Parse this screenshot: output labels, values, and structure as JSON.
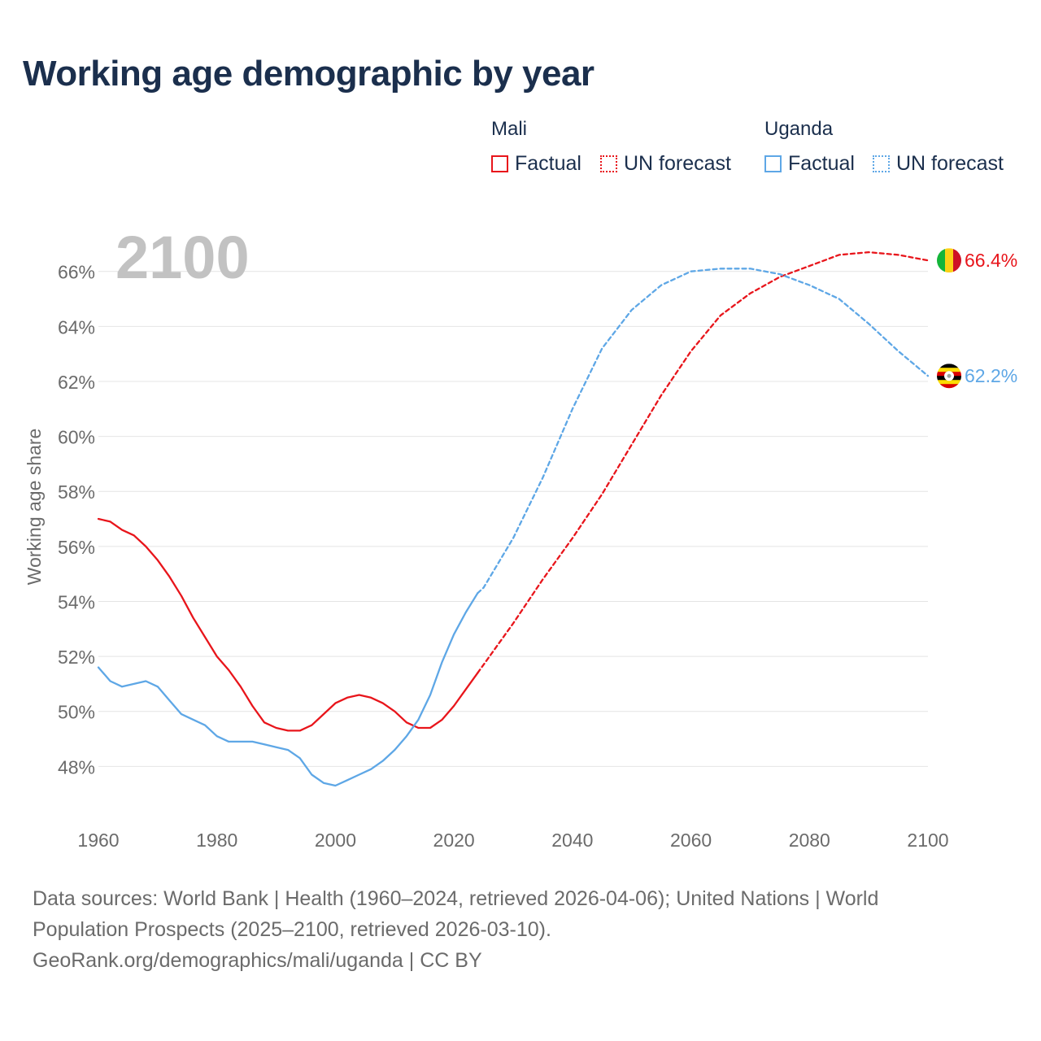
{
  "title": "Working age demographic by year",
  "legend": {
    "groups": [
      {
        "name": "Mali",
        "color": "#e8151b",
        "items": [
          "Factual",
          "UN forecast"
        ]
      },
      {
        "name": "Uganda",
        "color": "#5ea7e6",
        "items": [
          "Factual",
          "UN forecast"
        ]
      }
    ]
  },
  "year_overlay": "2100",
  "source": {
    "line1": "Data sources: World Bank | Health (1960–2024, retrieved 2026-04-06); United Nations | World",
    "line2": "Population Prospects (2025–2100, retrieved 2026-03-10).",
    "line3": "GeoRank.org/demographics/mali/uganda | CC BY"
  },
  "chart_data": {
    "type": "line",
    "title": "Working age demographic by year",
    "xlabel": "",
    "ylabel": "Working age share",
    "xlim": [
      1960,
      2100
    ],
    "ylim": [
      46,
      67.5
    ],
    "x_ticks": [
      1960,
      1980,
      2000,
      2020,
      2040,
      2060,
      2080,
      2100
    ],
    "x_tick_labels": [
      "1960",
      "1980",
      "2000",
      "2020",
      "2040",
      "2060",
      "2080",
      "2100"
    ],
    "y_ticks": [
      48,
      50,
      52,
      54,
      56,
      58,
      60,
      62,
      64,
      66
    ],
    "y_tick_labels": [
      "48%",
      "50%",
      "52%",
      "54%",
      "56%",
      "58%",
      "60%",
      "62%",
      "64%",
      "66%"
    ],
    "grid": true,
    "series": [
      {
        "name": "Mali",
        "kind": "Factual",
        "color": "#e8151b",
        "style": "solid",
        "points": [
          [
            1960,
            57.0
          ],
          [
            1962,
            56.9
          ],
          [
            1964,
            56.6
          ],
          [
            1966,
            56.4
          ],
          [
            1968,
            56.0
          ],
          [
            1970,
            55.5
          ],
          [
            1972,
            54.9
          ],
          [
            1974,
            54.2
          ],
          [
            1976,
            53.4
          ],
          [
            1978,
            52.7
          ],
          [
            1980,
            52.0
          ],
          [
            1982,
            51.5
          ],
          [
            1984,
            50.9
          ],
          [
            1986,
            50.2
          ],
          [
            1988,
            49.6
          ],
          [
            1990,
            49.4
          ],
          [
            1992,
            49.3
          ],
          [
            1994,
            49.3
          ],
          [
            1996,
            49.5
          ],
          [
            1998,
            49.9
          ],
          [
            2000,
            50.3
          ],
          [
            2002,
            50.5
          ],
          [
            2004,
            50.6
          ],
          [
            2006,
            50.5
          ],
          [
            2008,
            50.3
          ],
          [
            2010,
            50.0
          ],
          [
            2012,
            49.6
          ],
          [
            2014,
            49.4
          ],
          [
            2016,
            49.4
          ],
          [
            2018,
            49.7
          ],
          [
            2020,
            50.2
          ],
          [
            2022,
            50.8
          ],
          [
            2024,
            51.4
          ]
        ]
      },
      {
        "name": "Mali",
        "kind": "UN forecast",
        "color": "#e8151b",
        "style": "dashed",
        "points": [
          [
            2024,
            51.4
          ],
          [
            2025,
            51.7
          ],
          [
            2030,
            53.2
          ],
          [
            2035,
            54.8
          ],
          [
            2040,
            56.3
          ],
          [
            2045,
            57.9
          ],
          [
            2050,
            59.7
          ],
          [
            2055,
            61.5
          ],
          [
            2060,
            63.1
          ],
          [
            2065,
            64.4
          ],
          [
            2070,
            65.2
          ],
          [
            2075,
            65.8
          ],
          [
            2080,
            66.2
          ],
          [
            2085,
            66.6
          ],
          [
            2090,
            66.7
          ],
          [
            2095,
            66.6
          ],
          [
            2100,
            66.4
          ]
        ]
      },
      {
        "name": "Uganda",
        "kind": "Factual",
        "color": "#5ea7e6",
        "style": "solid",
        "points": [
          [
            1960,
            51.6
          ],
          [
            1962,
            51.1
          ],
          [
            1964,
            50.9
          ],
          [
            1966,
            51.0
          ],
          [
            1968,
            51.1
          ],
          [
            1970,
            50.9
          ],
          [
            1972,
            50.4
          ],
          [
            1974,
            49.9
          ],
          [
            1976,
            49.7
          ],
          [
            1978,
            49.5
          ],
          [
            1980,
            49.1
          ],
          [
            1982,
            48.9
          ],
          [
            1984,
            48.9
          ],
          [
            1986,
            48.9
          ],
          [
            1988,
            48.8
          ],
          [
            1990,
            48.7
          ],
          [
            1992,
            48.6
          ],
          [
            1994,
            48.3
          ],
          [
            1996,
            47.7
          ],
          [
            1998,
            47.4
          ],
          [
            2000,
            47.3
          ],
          [
            2002,
            47.5
          ],
          [
            2004,
            47.7
          ],
          [
            2006,
            47.9
          ],
          [
            2008,
            48.2
          ],
          [
            2010,
            48.6
          ],
          [
            2012,
            49.1
          ],
          [
            2014,
            49.7
          ],
          [
            2016,
            50.6
          ],
          [
            2018,
            51.8
          ],
          [
            2020,
            52.8
          ],
          [
            2022,
            53.6
          ],
          [
            2024,
            54.3
          ]
        ]
      },
      {
        "name": "Uganda",
        "kind": "UN forecast",
        "color": "#5ea7e6",
        "style": "dashed",
        "points": [
          [
            2024,
            54.3
          ],
          [
            2025,
            54.5
          ],
          [
            2030,
            56.3
          ],
          [
            2035,
            58.5
          ],
          [
            2040,
            61.0
          ],
          [
            2045,
            63.2
          ],
          [
            2050,
            64.6
          ],
          [
            2055,
            65.5
          ],
          [
            2060,
            66.0
          ],
          [
            2065,
            66.1
          ],
          [
            2070,
            66.1
          ],
          [
            2075,
            65.9
          ],
          [
            2080,
            65.5
          ],
          [
            2085,
            65.0
          ],
          [
            2090,
            64.1
          ],
          [
            2095,
            63.1
          ],
          [
            2100,
            62.2
          ]
        ]
      }
    ],
    "end_labels": [
      {
        "country": "Mali",
        "value": 66.4,
        "label": "66.4%",
        "color": "#e8151b",
        "flag": "mali-flag"
      },
      {
        "country": "Uganda",
        "value": 62.2,
        "label": "62.2%",
        "color": "#5ea7e6",
        "flag": "uganda-flag"
      }
    ]
  }
}
